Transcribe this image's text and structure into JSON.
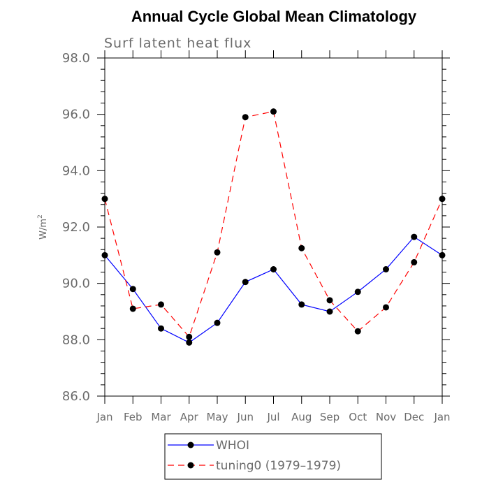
{
  "chart_data": {
    "type": "line",
    "title": "Annual Cycle Global Mean Climatology",
    "subtitle": "Surf latent heat flux",
    "xlabel": "",
    "ylabel": "W/m",
    "ylabel_superscript": "2",
    "categories": [
      "Jan",
      "Feb",
      "Mar",
      "Apr",
      "May",
      "Jun",
      "Jul",
      "Aug",
      "Sep",
      "Oct",
      "Nov",
      "Dec",
      "Jan"
    ],
    "ylim": [
      86.0,
      98.0
    ],
    "yticks": [
      "86.0",
      "88.0",
      "90.0",
      "92.0",
      "94.0",
      "96.0",
      "98.0"
    ],
    "ytick_values": [
      86,
      88,
      90,
      92,
      94,
      96,
      98
    ],
    "grid": false,
    "legend_position": "bottom-center",
    "series": [
      {
        "name": "WHOI",
        "color": "#0000ff",
        "style": "solid",
        "values": [
          91.0,
          89.8,
          88.4,
          87.9,
          88.6,
          90.05,
          90.5,
          89.25,
          89.0,
          89.7,
          90.5,
          91.65,
          91.0
        ]
      },
      {
        "name": "tuning0 (1979–1979)",
        "color": "#ff0000",
        "style": "dashed",
        "values": [
          93.0,
          89.1,
          89.25,
          88.1,
          91.1,
          95.9,
          96.1,
          91.25,
          89.4,
          88.3,
          89.15,
          90.75,
          93.0
        ]
      }
    ]
  }
}
